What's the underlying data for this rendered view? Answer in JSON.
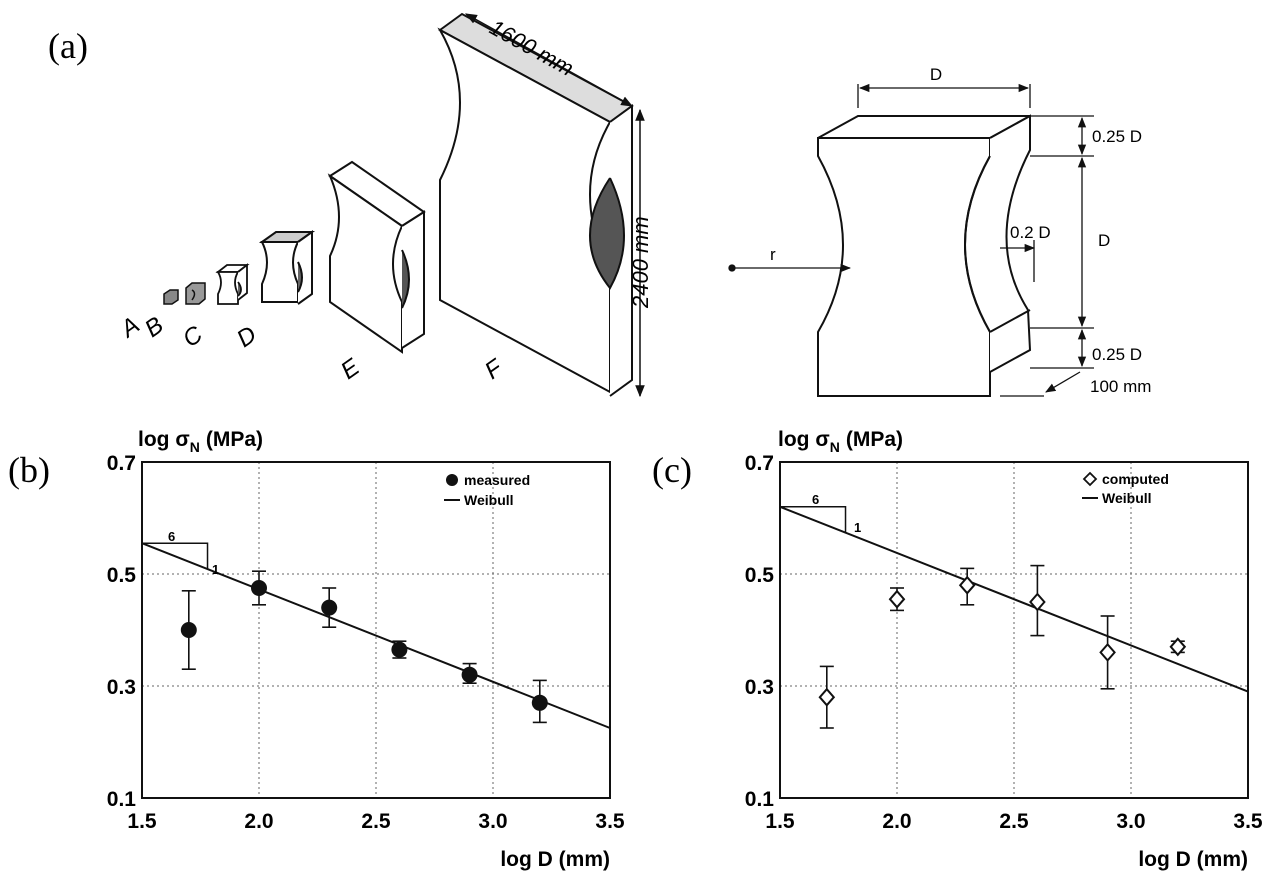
{
  "figure_a": {
    "panel_label": "(a)",
    "specimen_labels": [
      "A",
      "B",
      "C",
      "D",
      "E",
      "F"
    ],
    "width_label": "1600 mm",
    "height_label": "2400 mm",
    "detail": {
      "top_dim": "D",
      "r_label": "r",
      "notch_dim": "0.2 D",
      "upper_dim": "0.25 D",
      "middle_dim": "D",
      "lower_dim": "0.25 D",
      "thickness_dim": "100 mm"
    }
  },
  "chart_data": [
    {
      "type": "scatter",
      "panel_label": "(b)",
      "ylabel_main": "log σ",
      "ylabel_sub": "N",
      "ylabel_unit": "(MPa)",
      "xlabel": "log D (mm)",
      "xlim": [
        1.5,
        3.5
      ],
      "ylim": [
        0.1,
        0.7
      ],
      "xticks": [
        "1.5",
        "2.0",
        "2.5",
        "3.0",
        "3.5"
      ],
      "yticks": [
        "0.1",
        "0.3",
        "0.5",
        "0.7"
      ],
      "grid": true,
      "legend_position": "top-right",
      "series": [
        {
          "name": "measured",
          "marker": "filled-circle",
          "x": [
            1.7,
            2.0,
            2.3,
            2.6,
            2.9,
            3.2
          ],
          "y": [
            0.4,
            0.475,
            0.44,
            0.365,
            0.32,
            0.27
          ],
          "err_low": [
            0.33,
            0.445,
            0.405,
            0.35,
            0.305,
            0.235
          ],
          "err_high": [
            0.47,
            0.505,
            0.475,
            0.38,
            0.34,
            0.31
          ]
        },
        {
          "name": "Weibull",
          "marker": "line",
          "x": [
            1.5,
            3.5
          ],
          "y": [
            0.555,
            0.225
          ]
        }
      ],
      "slope_annotation": {
        "run": "6",
        "rise": "1"
      }
    },
    {
      "type": "scatter",
      "panel_label": "(c)",
      "ylabel_main": "log σ",
      "ylabel_sub": "N",
      "ylabel_unit": "(MPa)",
      "xlabel": "log D (mm)",
      "xlim": [
        1.5,
        3.5
      ],
      "ylim": [
        0.1,
        0.7
      ],
      "xticks": [
        "1.5",
        "2.0",
        "2.5",
        "3.0",
        "3.5"
      ],
      "yticks": [
        "0.1",
        "0.3",
        "0.5",
        "0.7"
      ],
      "grid": true,
      "legend_position": "top-right",
      "series": [
        {
          "name": "computed",
          "marker": "open-diamond",
          "x": [
            1.7,
            2.0,
            2.3,
            2.6,
            2.9,
            3.2
          ],
          "y": [
            0.28,
            0.455,
            0.48,
            0.45,
            0.36,
            0.37
          ],
          "err_low": [
            0.225,
            0.435,
            0.445,
            0.39,
            0.295,
            0.36
          ],
          "err_high": [
            0.335,
            0.475,
            0.51,
            0.515,
            0.425,
            0.38
          ]
        },
        {
          "name": "Weibull",
          "marker": "line",
          "x": [
            1.5,
            3.5
          ],
          "y": [
            0.62,
            0.29
          ]
        }
      ],
      "slope_annotation": {
        "run": "6",
        "rise": "1"
      }
    }
  ]
}
